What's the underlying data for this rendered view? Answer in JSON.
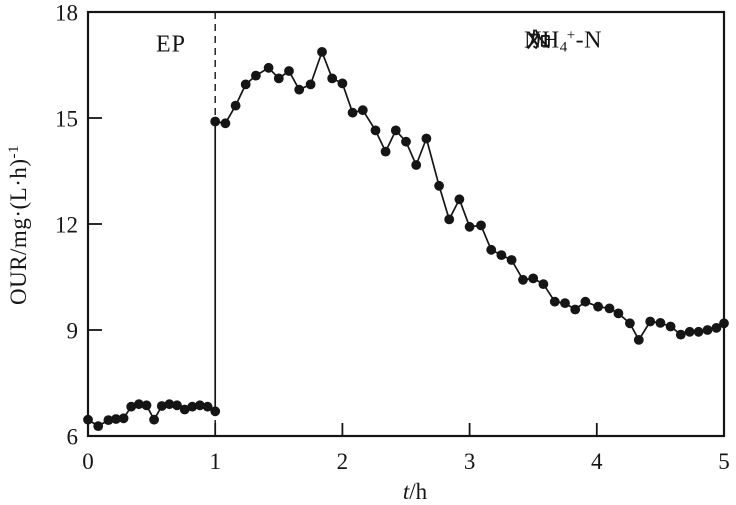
{
  "figure": {
    "background": "#ffffff",
    "ink": "#151515"
  },
  "annotations": {
    "ep_label": "EP",
    "dosing_label": {
      "full_text": "NH4+-N加入",
      "prefix": "NH",
      "sub": "4",
      "sup": "+",
      "mid": "-N",
      "suffix_cjk": "加入"
    }
  },
  "y_axis": {
    "title_main": "OUR/mg·(L·h)",
    "title_exponent": "-1",
    "tick_labels": [
      "6",
      "9",
      "12",
      "15",
      "18"
    ]
  },
  "x_axis": {
    "title_var": "t",
    "title_rest": "/h",
    "tick_labels": [
      "0",
      "1",
      "2",
      "3",
      "4",
      "5"
    ]
  },
  "chart_data": {
    "type": "line",
    "title": "",
    "xlabel": "t/h",
    "ylabel": "OUR/mg·(L·h)^-1",
    "xlim": [
      0,
      5
    ],
    "ylim": [
      6,
      18
    ],
    "xticks": [
      0,
      1,
      2,
      3,
      4,
      5
    ],
    "yticks": [
      6,
      9,
      12,
      15,
      18
    ],
    "grid": false,
    "legend": "none",
    "marker": "filled-circle",
    "marker_color": "#151515",
    "line_color": "#151515",
    "event_line": {
      "x": 1,
      "style": "dashed",
      "comment": "vertical dashed line at NH4+-N dosing time"
    },
    "phase_annotations": [
      {
        "text": "EP",
        "x": 0.65,
        "y": 17.1
      },
      {
        "text": "NH4+-N加入",
        "x": 3.73,
        "y": 17.2
      }
    ],
    "series": [
      {
        "name": "OUR",
        "points": [
          [
            0.0,
            6.46
          ],
          [
            0.08,
            6.28
          ],
          [
            0.16,
            6.45
          ],
          [
            0.22,
            6.48
          ],
          [
            0.28,
            6.5
          ],
          [
            0.34,
            6.83
          ],
          [
            0.4,
            6.9
          ],
          [
            0.46,
            6.87
          ],
          [
            0.52,
            6.46
          ],
          [
            0.58,
            6.85
          ],
          [
            0.64,
            6.9
          ],
          [
            0.7,
            6.87
          ],
          [
            0.76,
            6.75
          ],
          [
            0.82,
            6.83
          ],
          [
            0.88,
            6.87
          ],
          [
            0.94,
            6.83
          ],
          [
            1.0,
            6.7
          ],
          [
            1.0,
            14.9
          ],
          [
            1.08,
            14.85
          ],
          [
            1.16,
            15.35
          ],
          [
            1.24,
            15.95
          ],
          [
            1.32,
            16.2
          ],
          [
            1.42,
            16.42
          ],
          [
            1.5,
            16.12
          ],
          [
            1.58,
            16.33
          ],
          [
            1.66,
            15.8
          ],
          [
            1.75,
            15.95
          ],
          [
            1.84,
            16.87
          ],
          [
            1.92,
            16.12
          ],
          [
            2.0,
            15.98
          ],
          [
            2.08,
            15.15
          ],
          [
            2.16,
            15.22
          ],
          [
            2.26,
            14.65
          ],
          [
            2.34,
            14.05
          ],
          [
            2.42,
            14.65
          ],
          [
            2.5,
            14.33
          ],
          [
            2.58,
            13.67
          ],
          [
            2.66,
            14.42
          ],
          [
            2.76,
            13.08
          ],
          [
            2.84,
            12.13
          ],
          [
            2.92,
            12.7
          ],
          [
            3.0,
            11.92
          ],
          [
            3.09,
            11.96
          ],
          [
            3.17,
            11.27
          ],
          [
            3.25,
            11.12
          ],
          [
            3.33,
            10.98
          ],
          [
            3.42,
            10.42
          ],
          [
            3.5,
            10.46
          ],
          [
            3.58,
            10.3
          ],
          [
            3.67,
            9.8
          ],
          [
            3.75,
            9.76
          ],
          [
            3.83,
            9.58
          ],
          [
            3.91,
            9.8
          ],
          [
            4.01,
            9.66
          ],
          [
            4.1,
            9.61
          ],
          [
            4.17,
            9.47
          ],
          [
            4.26,
            9.19
          ],
          [
            4.33,
            8.72
          ],
          [
            4.42,
            9.24
          ],
          [
            4.5,
            9.2
          ],
          [
            4.58,
            9.1
          ],
          [
            4.66,
            8.87
          ],
          [
            4.73,
            8.95
          ],
          [
            4.8,
            8.95
          ],
          [
            4.87,
            9.0
          ],
          [
            4.94,
            9.06
          ],
          [
            5.0,
            9.19
          ]
        ]
      }
    ]
  }
}
